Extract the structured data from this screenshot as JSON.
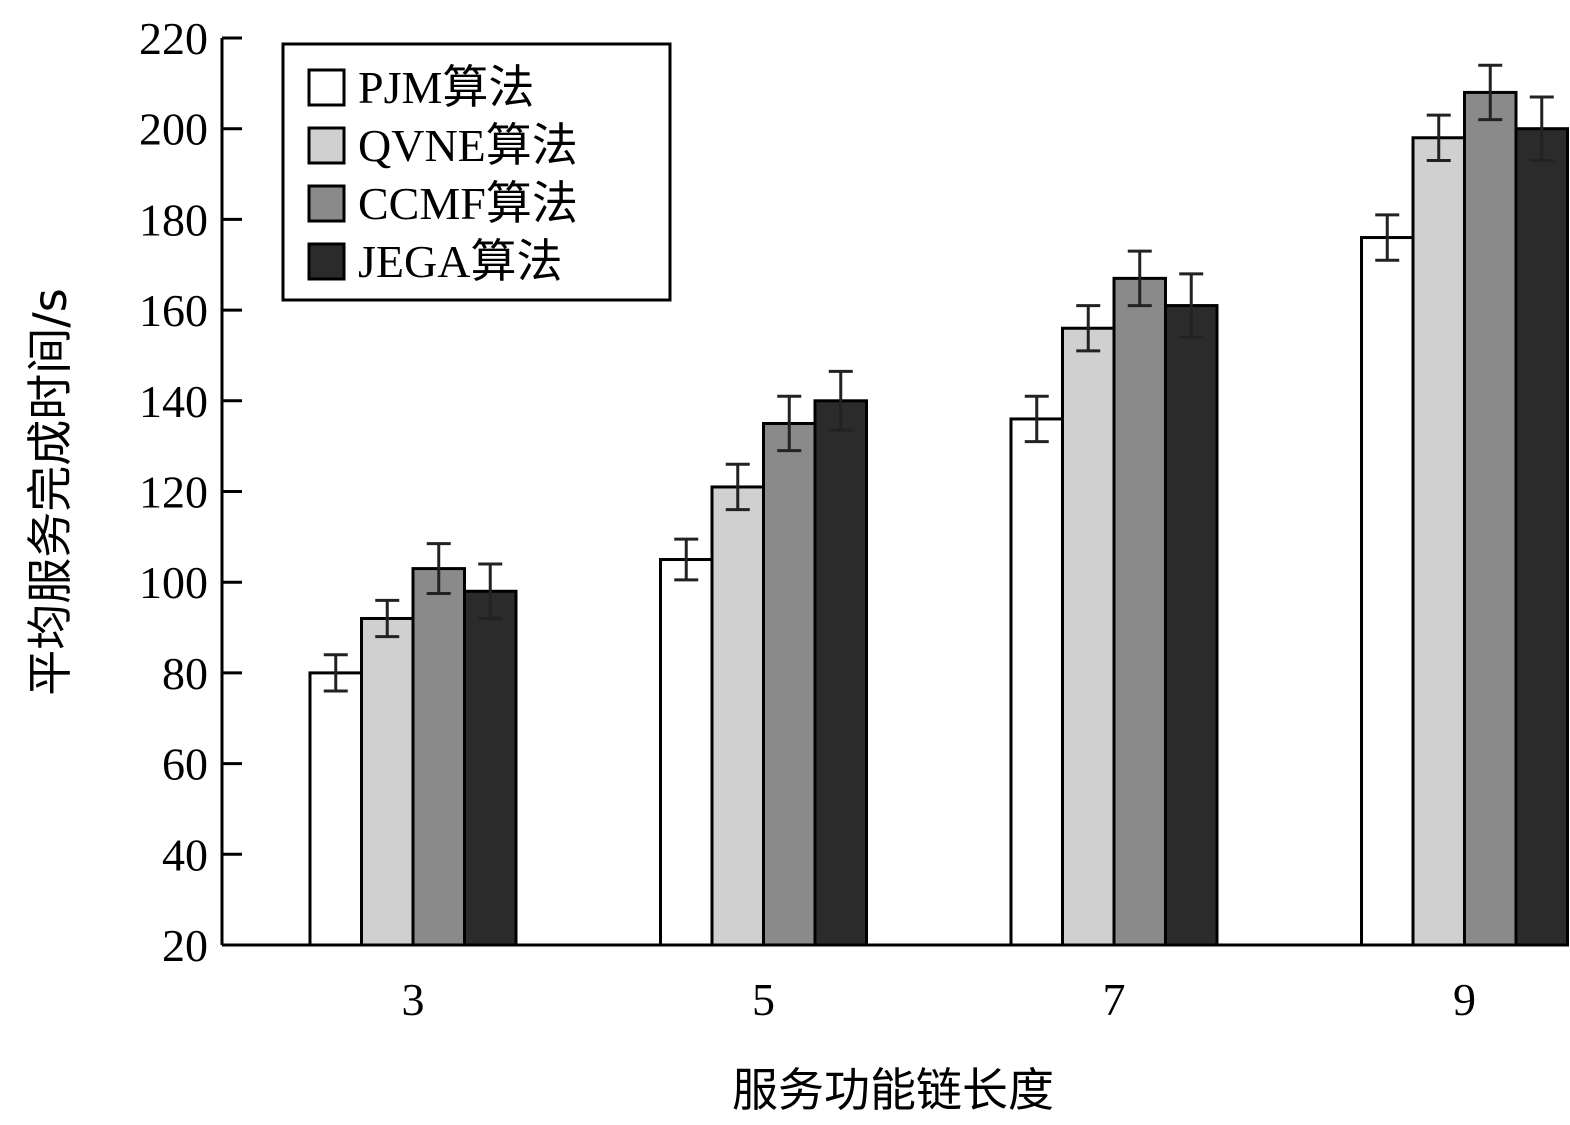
{
  "chart_data": {
    "type": "bar",
    "categories": [
      "3",
      "5",
      "7",
      "9"
    ],
    "series": [
      {
        "name": "PJM算法",
        "color": "#ffffff",
        "values": [
          80,
          105,
          136,
          176
        ],
        "errors": [
          4,
          4.5,
          5,
          5
        ]
      },
      {
        "name": "QVNE算法",
        "color": "#d0d0d0",
        "values": [
          92,
          121,
          156,
          198
        ],
        "errors": [
          4,
          5,
          5,
          5
        ]
      },
      {
        "name": "CCMF算法",
        "color": "#8a8a8a",
        "values": [
          103,
          135,
          167,
          208
        ],
        "errors": [
          5.5,
          6,
          6,
          6
        ]
      },
      {
        "name": "JEGA算法",
        "color": "#2b2b2b",
        "values": [
          98,
          140,
          161,
          200
        ],
        "errors": [
          6,
          6.5,
          7,
          7
        ]
      }
    ],
    "title": "",
    "xlabel": "服务功能链长度",
    "ylabel": "平均服务完成时间/s",
    "ylim": [
      20,
      220
    ],
    "yticks": [
      20,
      40,
      60,
      80,
      100,
      120,
      140,
      160,
      180,
      200,
      220
    ],
    "grid": false,
    "legend": "top-left"
  }
}
